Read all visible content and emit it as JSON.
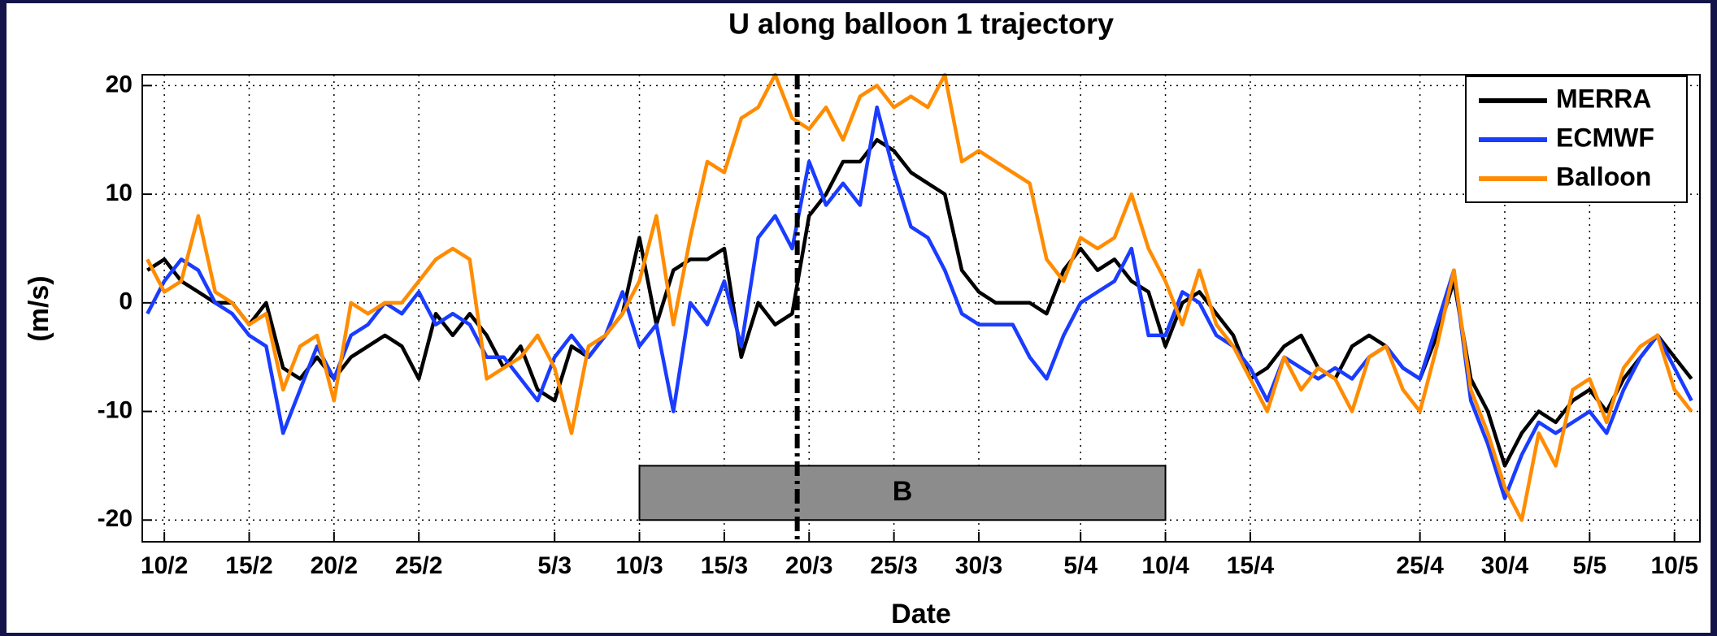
{
  "chart_data": {
    "type": "line",
    "title": "U along balloon 1 trajectory",
    "xlabel": "Date",
    "ylabel": "(m/s)",
    "x": [
      40,
      41,
      42,
      43,
      44,
      45,
      46,
      47,
      48,
      49,
      50,
      51,
      52,
      53,
      54,
      55,
      56,
      57,
      58,
      59,
      60,
      61,
      62,
      63,
      64,
      65,
      66,
      67,
      68,
      69,
      70,
      71,
      72,
      73,
      74,
      75,
      76,
      77,
      78,
      79,
      80,
      81,
      82,
      83,
      84,
      85,
      86,
      87,
      88,
      89,
      90,
      91,
      92,
      93,
      94,
      95,
      96,
      97,
      98,
      99,
      100,
      101,
      102,
      103,
      104,
      105,
      106,
      107,
      108,
      109,
      110,
      111,
      112,
      113,
      114,
      115,
      116,
      117,
      118,
      119,
      120,
      121,
      122,
      123,
      124,
      125,
      126,
      127,
      128,
      129,
      130,
      131
    ],
    "series": [
      {
        "name": "MERRA",
        "color": "#000000",
        "values": [
          3,
          4,
          2,
          1,
          0,
          0,
          -2,
          0,
          -6,
          -7,
          -5,
          -7,
          -5,
          -4,
          -3,
          -4,
          -7,
          -1,
          -3,
          -1,
          -3,
          -6,
          -4,
          -8,
          -9,
          -4,
          -5,
          -3,
          -1,
          6,
          -2,
          3,
          4,
          4,
          5,
          -5,
          0,
          -2,
          -1,
          8,
          10,
          13,
          13,
          15,
          14,
          12,
          11,
          10,
          3,
          1,
          0,
          0,
          0,
          -1,
          3,
          5,
          3,
          4,
          2,
          1,
          -4,
          0,
          1,
          -1,
          -3,
          -7,
          -6,
          -4,
          -3,
          -6,
          -7,
          -4,
          -3,
          -4,
          -6,
          -7,
          -3,
          2,
          -7,
          -10,
          -15,
          -12,
          -10,
          -11,
          -9,
          -8,
          -10,
          -7,
          -5,
          -3,
          -5,
          -7
        ]
      },
      {
        "name": "ECMWF",
        "color": "#1a3cff",
        "values": [
          -1,
          2,
          4,
          3,
          0,
          -1,
          -3,
          -4,
          -12,
          -8,
          -4,
          -7,
          -3,
          -2,
          0,
          -1,
          1,
          -2,
          -1,
          -2,
          -5,
          -5,
          -7,
          -9,
          -5,
          -3,
          -5,
          -3,
          1,
          -4,
          -2,
          -10,
          0,
          -2,
          2,
          -4,
          6,
          8,
          5,
          13,
          9,
          11,
          9,
          18,
          12,
          7,
          6,
          3,
          -1,
          -2,
          -2,
          -2,
          -5,
          -7,
          -3,
          0,
          1,
          2,
          5,
          -3,
          -3,
          1,
          0,
          -3,
          -4,
          -6,
          -9,
          -5,
          -6,
          -7,
          -6,
          -7,
          -5,
          -4,
          -6,
          -7,
          -2,
          3,
          -9,
          -13,
          -18,
          -14,
          -11,
          -12,
          -11,
          -10,
          -12,
          -8,
          -5,
          -3,
          -6,
          -9
        ]
      },
      {
        "name": "Balloon",
        "color": "#ff8c00",
        "values": [
          4,
          1,
          2,
          8,
          1,
          0,
          -2,
          -1,
          -8,
          -4,
          -3,
          -9,
          0,
          -1,
          0,
          0,
          2,
          4,
          5,
          4,
          -7,
          -6,
          -5,
          -3,
          -6,
          -12,
          -4,
          -3,
          -1,
          2,
          8,
          -2,
          6,
          13,
          12,
          17,
          18,
          21,
          17,
          16,
          18,
          15,
          19,
          20,
          18,
          19,
          18,
          21,
          13,
          14,
          13,
          12,
          11,
          4,
          2,
          6,
          5,
          6,
          10,
          5,
          2,
          -2,
          3,
          -2,
          -4,
          -7,
          -10,
          -5,
          -8,
          -6,
          -7,
          -10,
          -5,
          -4,
          -8,
          -10,
          -4,
          3,
          -8,
          -12,
          -17,
          -20,
          -12,
          -15,
          -8,
          -7,
          -11,
          -6,
          -4,
          -3,
          -8,
          -10
        ]
      }
    ],
    "xlim": [
      39.7,
      131.5
    ],
    "ylim": [
      -22,
      21
    ],
    "xticks": [
      {
        "value": 41,
        "label": "10/2"
      },
      {
        "value": 46,
        "label": "15/2"
      },
      {
        "value": 51,
        "label": "20/2"
      },
      {
        "value": 56,
        "label": "25/2"
      },
      {
        "value": 64,
        "label": "5/3"
      },
      {
        "value": 69,
        "label": "10/3"
      },
      {
        "value": 74,
        "label": "15/3"
      },
      {
        "value": 79,
        "label": "20/3"
      },
      {
        "value": 84,
        "label": "25/3"
      },
      {
        "value": 89,
        "label": "30/3"
      },
      {
        "value": 95,
        "label": "5/4"
      },
      {
        "value": 100,
        "label": "10/4"
      },
      {
        "value": 105,
        "label": "15/4"
      },
      {
        "value": 115,
        "label": "25/4"
      },
      {
        "value": 120,
        "label": "30/4"
      },
      {
        "value": 125,
        "label": "5/5"
      },
      {
        "value": 130,
        "label": "10/5"
      }
    ],
    "yticks": [
      -20,
      -10,
      0,
      10,
      20
    ],
    "grid": true,
    "legend": "upper-right",
    "vline_x": 78.3,
    "annotations": [
      {
        "text": "B",
        "x0": 69,
        "x1": 100,
        "y0": -20,
        "y1": -15
      }
    ]
  }
}
